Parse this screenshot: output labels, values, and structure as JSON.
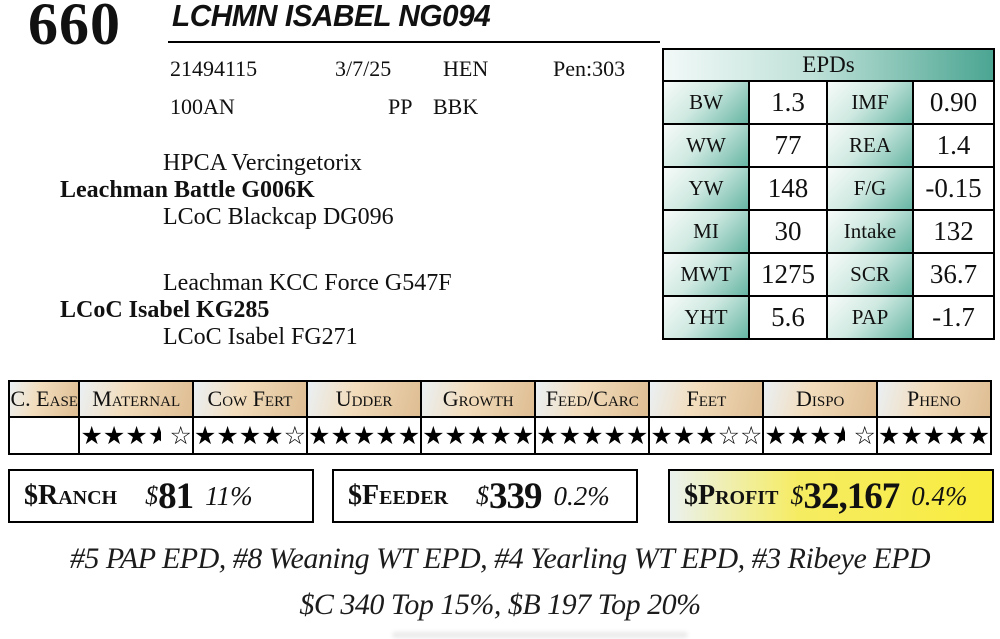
{
  "header": {
    "lot_number": "660",
    "animal_name": "LCHMN ISABEL NG094"
  },
  "info": {
    "registration": "21494115",
    "birth_date": "3/7/25",
    "sex": "HEN",
    "pen": "Pen:303",
    "tattoo": "100AN",
    "polled": "PP",
    "color": "BBK"
  },
  "pedigree": {
    "sire_sire": "HPCA Vercingetorix",
    "sire": "Leachman Battle G006K",
    "sire_dam": "LCoC Blackcap DG096",
    "dam_sire": "Leachman KCC Force G547F",
    "dam": "LCoC Isabel KG285",
    "dam_dam": "LCoC Isabel FG271"
  },
  "epd": {
    "title": "EPDs",
    "rows": [
      {
        "l_label": "BW",
        "l_value": "1.3",
        "r_label": "IMF",
        "r_value": "0.90"
      },
      {
        "l_label": "WW",
        "l_value": "77",
        "r_label": "REA",
        "r_value": "1.4"
      },
      {
        "l_label": "YW",
        "l_value": "148",
        "r_label": "F/G",
        "r_value": "-0.15"
      },
      {
        "l_label": "MI",
        "l_value": "30",
        "r_label": "Intake",
        "r_value": "132"
      },
      {
        "l_label": "MWT",
        "l_value": "1275",
        "r_label": "SCR",
        "r_value": "36.7"
      },
      {
        "l_label": "YHT",
        "l_value": "5.6",
        "r_label": "PAP",
        "r_value": "-1.7"
      }
    ]
  },
  "traits": {
    "star_legend": "f=full star, h=half star, e=empty star, space=gap",
    "columns": [
      {
        "label": "C. Ease",
        "stars": ""
      },
      {
        "label": "Maternal",
        "stars": "fffh e"
      },
      {
        "label": "Cow Fert",
        "stars": "ffffe"
      },
      {
        "label": "Udder",
        "stars": "fffff"
      },
      {
        "label": "Growth",
        "stars": "fffff"
      },
      {
        "label": "Feed/Carc",
        "stars": "fffff"
      },
      {
        "label": "Feet",
        "stars": "fffee"
      },
      {
        "label": "Dispo",
        "stars": "fffh e"
      },
      {
        "label": "Pheno",
        "stars": "fffff"
      }
    ]
  },
  "indexes": [
    {
      "label": "$Ranch",
      "currency": "$",
      "amount": "81",
      "percentile": "11%"
    },
    {
      "label": "$Feeder",
      "currency": "$",
      "amount": "339",
      "percentile": "0.2%"
    },
    {
      "label": "$Profit",
      "currency": "$",
      "amount": "32,167",
      "percentile": "0.4%"
    }
  ],
  "footnotes": {
    "line1": "#5 PAP EPD, #8 Weaning WT EPD, #4 Yearling WT EPD, #3 Ribeye EPD",
    "line2": "$C 340 Top 15%,  $B 197 Top  20%"
  },
  "colors": {
    "epd_teal_dark": "#4ba592",
    "epd_teal_light": "#cfe9e1",
    "trait_tan": "#debd92",
    "trait_tan_light": "#f2ddbd",
    "profit_yellow": "#f8ec3f",
    "border": "#000000"
  }
}
